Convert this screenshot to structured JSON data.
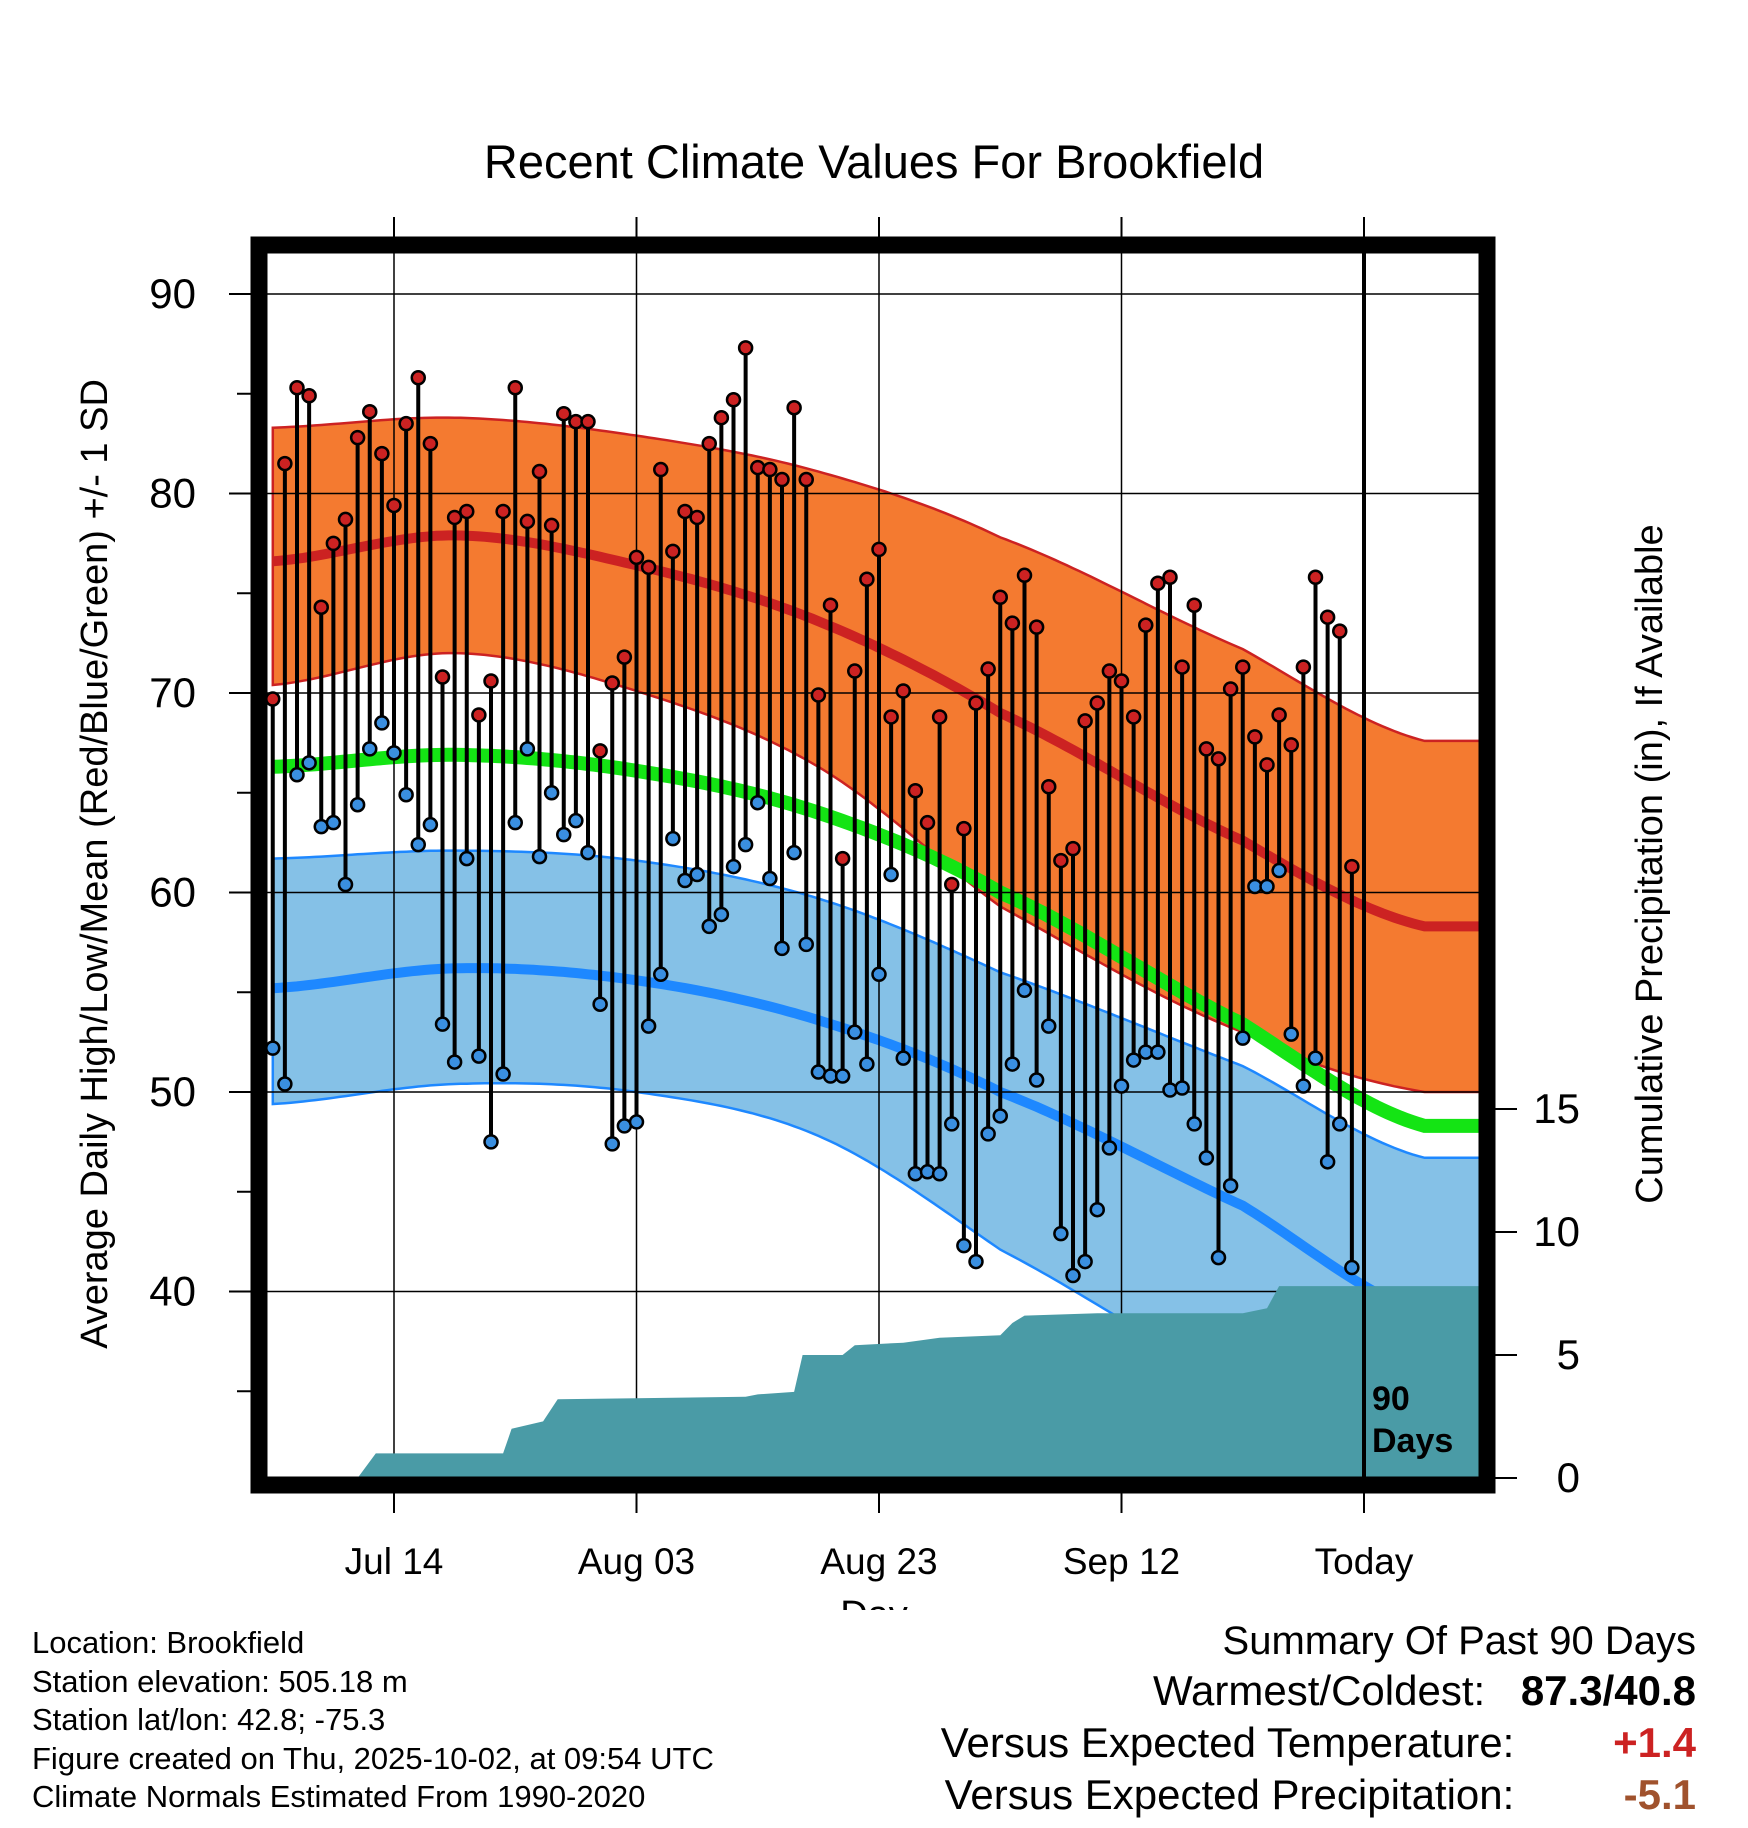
{
  "chart_data": {
    "type": "line",
    "title": "Recent Climate Values For Brookfield",
    "xlabel": "Day",
    "ylabel": "Average Daily High/Low/Mean (Red/Blue/Green) +/- 1 SD",
    "y2label": "Cumulative Precipitation (in), If Available",
    "ylim": [
      30.5,
      92.5
    ],
    "y2lim": [
      -1.0,
      31.0
    ],
    "xlim_days_from_jul14": [
      -11,
      95
    ],
    "xtick_labels": [
      "Jul 14",
      "Aug 03",
      "Aug 23",
      "Sep 12",
      "Today"
    ],
    "xtick_days": [
      0,
      20,
      40,
      60,
      80
    ],
    "ytick_labels": [
      "40",
      "50",
      "60",
      "70",
      "80",
      "90"
    ],
    "y2tick_labels": [
      "0",
      "5",
      "10",
      "15"
    ],
    "today_marker": "90\nDays",
    "today_marker_lines": [
      "90",
      "Days"
    ],
    "start_day": -10,
    "highs": [
      69.7,
      81.5,
      85.3,
      84.9,
      74.3,
      77.5,
      78.7,
      82.8,
      84.1,
      82.0,
      79.4,
      83.5,
      85.8,
      82.5,
      70.8,
      78.8,
      79.1,
      68.9,
      70.6,
      79.1,
      85.3,
      78.6,
      81.1,
      78.4,
      84.0,
      83.6,
      83.6,
      67.1,
      70.5,
      71.8,
      76.8,
      76.3,
      81.2,
      77.1,
      79.1,
      78.8,
      82.5,
      83.8,
      84.7,
      87.3,
      81.3,
      81.2,
      80.7,
      84.3,
      80.7,
      69.9,
      74.4,
      61.7,
      71.1,
      75.7,
      77.2,
      68.8,
      70.1,
      65.1,
      63.5,
      68.8,
      60.4,
      63.2,
      69.5,
      71.2,
      74.8,
      73.5,
      75.9,
      73.3,
      65.3,
      61.6,
      62.2,
      68.6,
      69.5,
      71.1,
      70.6,
      68.8,
      73.4,
      75.5,
      75.8,
      71.3,
      74.4,
      67.2,
      66.7,
      70.2,
      71.3,
      67.8,
      66.4,
      68.9,
      67.4,
      71.3,
      75.8,
      73.8,
      73.1,
      61.3
    ],
    "lows": [
      52.2,
      50.4,
      65.9,
      66.5,
      63.3,
      63.5,
      60.4,
      64.4,
      67.2,
      68.5,
      67.0,
      64.9,
      62.4,
      63.4,
      53.4,
      51.5,
      61.7,
      51.8,
      47.5,
      50.9,
      63.5,
      67.2,
      61.8,
      65.0,
      62.9,
      63.6,
      62.0,
      54.4,
      47.4,
      48.3,
      48.5,
      53.3,
      55.9,
      62.7,
      60.6,
      60.9,
      58.3,
      58.9,
      61.3,
      62.4,
      64.5,
      60.7,
      57.2,
      62.0,
      57.4,
      51.0,
      50.8,
      50.8,
      53.0,
      51.4,
      55.9,
      60.9,
      51.7,
      45.9,
      46.0,
      45.9,
      48.4,
      42.3,
      41.5,
      47.9,
      48.8,
      51.4,
      55.1,
      50.6,
      53.3,
      42.9,
      40.8,
      41.5,
      44.1,
      47.2,
      50.3,
      51.6,
      52.0,
      52.0,
      50.1,
      50.2,
      48.4,
      46.7,
      41.7,
      45.3,
      52.7,
      60.3,
      60.3,
      61.1,
      52.9,
      50.3,
      51.7,
      46.5,
      48.4,
      41.2
    ],
    "normal_high": [
      76.6,
      77.9,
      76.4,
      73.6,
      69.0,
      62.6,
      58.3
    ],
    "normal_high_upper": [
      83.3,
      83.8,
      82.9,
      81.1,
      77.8,
      72.2,
      67.6
    ],
    "normal_high_lower": [
      70.4,
      72.0,
      70.1,
      66.3,
      59.3,
      53.0,
      50.0
    ],
    "normal_mean": [
      66.3,
      66.9,
      66.1,
      64.0,
      60.0,
      53.4,
      48.3
    ],
    "normal_low": [
      55.2,
      56.2,
      55.6,
      53.6,
      50.0,
      44.3,
      38.9
    ],
    "normal_low_upper": [
      61.7,
      62.1,
      61.6,
      59.7,
      56.0,
      51.3,
      46.7
    ],
    "normal_low_lower": [
      49.4,
      50.4,
      50.0,
      47.8,
      42.1,
      35.3,
      31.0
    ],
    "normal_days": [
      -10,
      5,
      20,
      35,
      50,
      70,
      85
    ],
    "precip_steps": [
      {
        "day": -3,
        "value": 0.0
      },
      {
        "day": -1.5,
        "value": 1.0
      },
      {
        "day": 9,
        "value": 1.0
      },
      {
        "day": 9.7,
        "value": 2.0
      },
      {
        "day": 12.3,
        "value": 2.3
      },
      {
        "day": 13.5,
        "value": 3.2
      },
      {
        "day": 29,
        "value": 3.3
      },
      {
        "day": 30,
        "value": 3.4
      },
      {
        "day": 33,
        "value": 3.5
      },
      {
        "day": 33.7,
        "value": 5.0
      },
      {
        "day": 37,
        "value": 5.0
      },
      {
        "day": 38,
        "value": 5.4
      },
      {
        "day": 42,
        "value": 5.5
      },
      {
        "day": 45,
        "value": 5.7
      },
      {
        "day": 50,
        "value": 5.8
      },
      {
        "day": 51,
        "value": 6.3
      },
      {
        "day": 52,
        "value": 6.6
      },
      {
        "day": 58,
        "value": 6.7
      },
      {
        "day": 70,
        "value": 6.7
      },
      {
        "day": 72,
        "value": 6.9
      },
      {
        "day": 73,
        "value": 7.8
      },
      {
        "day": 80,
        "value": 7.8
      },
      {
        "day": 95,
        "value": 7.8
      }
    ],
    "colors": {
      "high": "#cc2222",
      "high_band": "#f47a30",
      "low": "#1e88ff",
      "low_band": "#85c1e7",
      "mean": "#14e414",
      "precip": "#4a9ba6",
      "high_dot": "#cc2222",
      "low_dot": "#3a8fe0"
    }
  },
  "footer": {
    "location": "Location: Brookfield",
    "elevation": "Station elevation: 505.18 m",
    "latlon": "Station lat/lon: 42.8; -75.3",
    "created": "Figure created on Thu, 2025-10-02, at 09:54 UTC",
    "normals": "Climate Normals Estimated From 1990-2020"
  },
  "summary": {
    "title": "Summary Of Past 90 Days",
    "warmest_label": "Warmest/Coldest:",
    "warmest_value": "87.3/40.8",
    "temp_label": "Versus Expected Temperature:",
    "temp_value": "+1.4",
    "temp_color": "#cc2222",
    "precip_label": "Versus Expected Precipitation:",
    "precip_value": "-5.1",
    "precip_color": "#a0522d"
  }
}
